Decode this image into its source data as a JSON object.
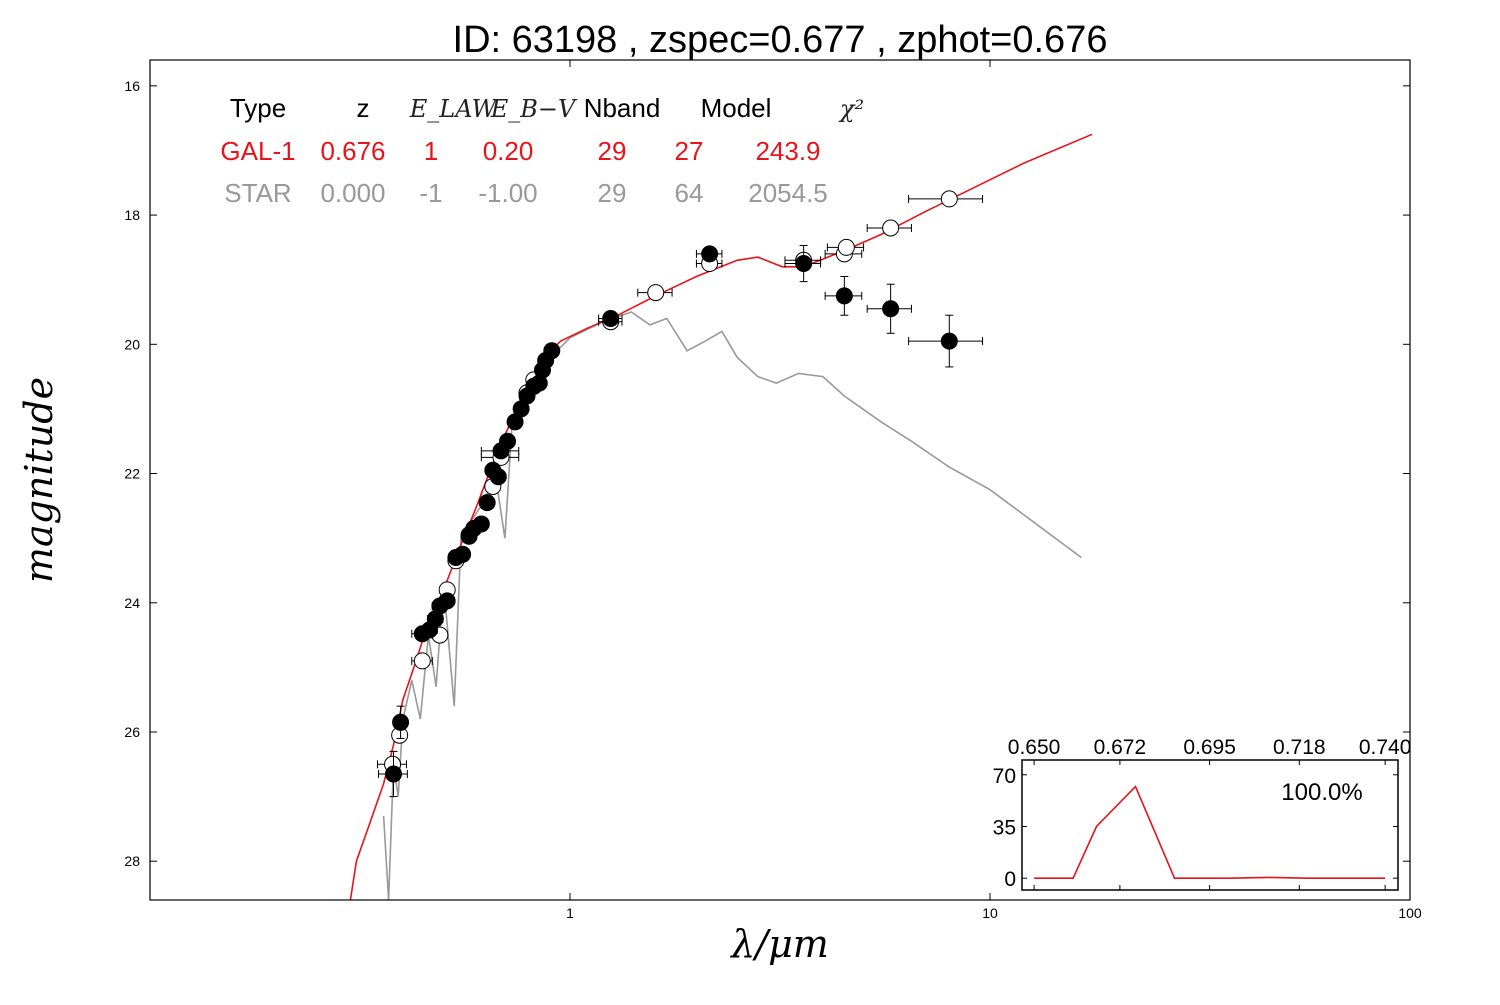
{
  "chart_data": {
    "type": "scatter",
    "title": "ID:  63198 , zspec=0.677 , zphot=0.676",
    "xlabel": "λ/μm",
    "ylabel": "magnitude",
    "xscale": "log",
    "xlim": [
      0.1,
      100
    ],
    "ylim": [
      28.6,
      15.6
    ],
    "x_ticks": [
      1,
      10,
      100
    ],
    "x_tick_labels": [
      "1",
      "10",
      "100"
    ],
    "y_ticks": [
      16,
      18,
      20,
      22,
      24,
      26,
      28
    ],
    "y_tick_labels": [
      "16",
      "18",
      "20",
      "22",
      "24",
      "26",
      "28"
    ],
    "colors": {
      "galaxy": "#e8141c",
      "star": "#999999",
      "markers": "#000000",
      "axes": "#000000"
    },
    "table": {
      "headers": [
        "Type",
        "z",
        "E_LAW",
        "E_B−V",
        "Nband",
        "Model",
        "χ²"
      ],
      "rows": [
        {
          "name": "GAL-1",
          "values": [
            "GAL-1",
            "0.676",
            "1",
            "0.20",
            "29",
            "27",
            "243.9"
          ],
          "color": "#e8141c"
        },
        {
          "name": "STAR",
          "values": [
            "STAR",
            "0.000",
            "-1",
            "-1.00",
            "29",
            "64",
            "2054.5"
          ],
          "color": "#999999"
        }
      ]
    },
    "series": [
      {
        "name": "GAL-1",
        "type": "line",
        "color": "#e8141c",
        "points": [
          [
            0.3,
            28.6
          ],
          [
            0.31,
            28.0
          ],
          [
            0.33,
            27.5
          ],
          [
            0.36,
            26.8
          ],
          [
            0.38,
            26.2
          ],
          [
            0.4,
            25.5
          ],
          [
            0.43,
            24.9
          ],
          [
            0.46,
            24.3
          ],
          [
            0.5,
            23.8
          ],
          [
            0.55,
            23.1
          ],
          [
            0.6,
            22.5
          ],
          [
            0.65,
            21.9
          ],
          [
            0.7,
            21.4
          ],
          [
            0.75,
            21.0
          ],
          [
            0.8,
            20.6
          ],
          [
            0.87,
            20.2
          ],
          [
            0.95,
            19.95
          ],
          [
            1.1,
            19.75
          ],
          [
            1.3,
            19.55
          ],
          [
            1.6,
            19.25
          ],
          [
            2.0,
            18.95
          ],
          [
            2.5,
            18.7
          ],
          [
            2.8,
            18.65
          ],
          [
            3.2,
            18.8
          ],
          [
            3.6,
            18.8
          ],
          [
            4.5,
            18.55
          ],
          [
            5.5,
            18.3
          ],
          [
            7,
            17.95
          ],
          [
            9,
            17.6
          ],
          [
            12,
            17.2
          ],
          [
            17.5,
            16.75
          ]
        ]
      },
      {
        "name": "STAR",
        "type": "line",
        "color": "#999999",
        "points": [
          [
            0.36,
            27.3
          ],
          [
            0.37,
            28.6
          ],
          [
            0.38,
            26.5
          ],
          [
            0.39,
            27.0
          ],
          [
            0.4,
            25.8
          ],
          [
            0.42,
            25.2
          ],
          [
            0.44,
            25.8
          ],
          [
            0.46,
            24.5
          ],
          [
            0.48,
            25.3
          ],
          [
            0.5,
            23.7
          ],
          [
            0.53,
            25.6
          ],
          [
            0.55,
            23.0
          ],
          [
            0.6,
            22.6
          ],
          [
            0.63,
            22.4
          ],
          [
            0.66,
            21.9
          ],
          [
            0.7,
            23.0
          ],
          [
            0.73,
            21.1
          ],
          [
            0.8,
            20.8
          ],
          [
            0.9,
            20.2
          ],
          [
            1.0,
            19.9
          ],
          [
            1.2,
            19.65
          ],
          [
            1.4,
            19.5
          ],
          [
            1.55,
            19.7
          ],
          [
            1.7,
            19.6
          ],
          [
            1.9,
            20.1
          ],
          [
            2.1,
            19.95
          ],
          [
            2.3,
            19.8
          ],
          [
            2.5,
            20.2
          ],
          [
            2.8,
            20.5
          ],
          [
            3.1,
            20.6
          ],
          [
            3.5,
            20.45
          ],
          [
            4.0,
            20.5
          ],
          [
            4.5,
            20.8
          ],
          [
            5.5,
            21.2
          ],
          [
            6.5,
            21.5
          ],
          [
            8,
            21.9
          ],
          [
            10,
            22.25
          ],
          [
            16.5,
            23.3
          ]
        ]
      }
    ],
    "photometry_observed": [
      {
        "x": 0.38,
        "y": 26.65,
        "xerr": 0.03,
        "yerr": 0.35
      },
      {
        "x": 0.395,
        "y": 25.85,
        "xerr": 0.01,
        "yerr": 0.25
      },
      {
        "x": 0.445,
        "y": 24.48,
        "xerr": 0.025,
        "yerr": 0.06
      },
      {
        "x": 0.463,
        "y": 24.42,
        "xerr": 0.02,
        "yerr": 0.06
      },
      {
        "x": 0.478,
        "y": 24.25,
        "xerr": 0.02,
        "yerr": 0.06
      },
      {
        "x": 0.49,
        "y": 24.05,
        "xerr": 0.02,
        "yerr": 0.06
      },
      {
        "x": 0.51,
        "y": 23.97,
        "xerr": 0.02,
        "yerr": 0.06
      },
      {
        "x": 0.535,
        "y": 23.3,
        "xerr": 0.02,
        "yerr": 0.05
      },
      {
        "x": 0.555,
        "y": 23.25,
        "xerr": 0.02,
        "yerr": 0.05
      },
      {
        "x": 0.575,
        "y": 22.97,
        "xerr": 0.02,
        "yerr": 0.05
      },
      {
        "x": 0.59,
        "y": 22.85,
        "xerr": 0.02,
        "yerr": 0.05
      },
      {
        "x": 0.615,
        "y": 22.78,
        "xerr": 0.02,
        "yerr": 0.05
      },
      {
        "x": 0.635,
        "y": 22.45,
        "xerr": 0.02,
        "yerr": 0.05
      },
      {
        "x": 0.655,
        "y": 21.95,
        "xerr": 0.02,
        "yerr": 0.05
      },
      {
        "x": 0.675,
        "y": 22.05,
        "xerr": 0.02,
        "yerr": 0.05
      },
      {
        "x": 0.685,
        "y": 21.65,
        "xerr": 0.07,
        "yerr": 0.05
      },
      {
        "x": 0.71,
        "y": 21.5,
        "xerr": 0.02,
        "yerr": 0.05
      },
      {
        "x": 0.74,
        "y": 21.2,
        "xerr": 0.02,
        "yerr": 0.05
      },
      {
        "x": 0.765,
        "y": 21.0,
        "xerr": 0.02,
        "yerr": 0.05
      },
      {
        "x": 0.79,
        "y": 20.8,
        "xerr": 0.02,
        "yerr": 0.05
      },
      {
        "x": 0.82,
        "y": 20.65,
        "xerr": 0.02,
        "yerr": 0.05
      },
      {
        "x": 0.845,
        "y": 20.6,
        "xerr": 0.02,
        "yerr": 0.05
      },
      {
        "x": 0.86,
        "y": 20.4,
        "xerr": 0.02,
        "yerr": 0.05
      },
      {
        "x": 0.875,
        "y": 20.25,
        "xerr": 0.02,
        "yerr": 0.05
      },
      {
        "x": 0.905,
        "y": 20.1,
        "xerr": 0.02,
        "yerr": 0.05
      },
      {
        "x": 1.25,
        "y": 19.6,
        "xerr": 0.08,
        "yerr": 0.05
      },
      {
        "x": 2.15,
        "y": 18.6,
        "xerr": 0.15,
        "yerr": 0.05
      },
      {
        "x": 3.6,
        "y": 18.75,
        "xerr": 0.35,
        "yerr": 0.28
      },
      {
        "x": 4.5,
        "y": 19.25,
        "xerr": 0.45,
        "yerr": 0.3
      },
      {
        "x": 5.8,
        "y": 19.45,
        "xerr": 0.7,
        "yerr": 0.38
      },
      {
        "x": 8.0,
        "y": 19.95,
        "xerr": 1.6,
        "yerr": 0.4
      }
    ],
    "photometry_model": [
      {
        "x": 0.378,
        "y": 26.5,
        "xerr": 0.03,
        "yerr": 0.0
      },
      {
        "x": 0.393,
        "y": 26.05,
        "xerr": 0.01,
        "yerr": 0.0
      },
      {
        "x": 0.445,
        "y": 24.9,
        "xerr": 0.025,
        "yerr": 0.0
      },
      {
        "x": 0.49,
        "y": 24.5,
        "xerr": 0.02,
        "yerr": 0.0
      },
      {
        "x": 0.51,
        "y": 23.8,
        "xerr": 0.02,
        "yerr": 0.0
      },
      {
        "x": 0.535,
        "y": 23.35,
        "xerr": 0.02,
        "yerr": 0.0
      },
      {
        "x": 0.575,
        "y": 22.95,
        "xerr": 0.02,
        "yerr": 0.0
      },
      {
        "x": 0.655,
        "y": 22.2,
        "xerr": 0.02,
        "yerr": 0.0
      },
      {
        "x": 0.685,
        "y": 21.75,
        "xerr": 0.07,
        "yerr": 0.0
      },
      {
        "x": 0.79,
        "y": 20.75,
        "xerr": 0.02,
        "yerr": 0.0
      },
      {
        "x": 0.82,
        "y": 20.55,
        "xerr": 0.02,
        "yerr": 0.0
      },
      {
        "x": 1.25,
        "y": 19.65,
        "xerr": 0.08,
        "yerr": 0.0
      },
      {
        "x": 1.6,
        "y": 19.2,
        "xerr": 0.15,
        "yerr": 0.0
      },
      {
        "x": 2.15,
        "y": 18.75,
        "xerr": 0.15,
        "yerr": 0.0
      },
      {
        "x": 3.6,
        "y": 18.7,
        "xerr": 0.35,
        "yerr": 0.0
      },
      {
        "x": 4.5,
        "y": 18.6,
        "xerr": 0.45,
        "yerr": 0.0
      },
      {
        "x": 4.55,
        "y": 18.5,
        "xerr": 0.45,
        "yerr": 0.0
      },
      {
        "x": 5.8,
        "y": 18.2,
        "xerr": 0.7,
        "yerr": 0.0
      },
      {
        "x": 8.0,
        "y": 17.75,
        "xerr": 1.6,
        "yerr": 0.0
      }
    ],
    "inset": {
      "type": "line",
      "xlim": [
        0.6469,
        0.7433
      ],
      "ylim": [
        -8,
        80
      ],
      "x_ticks": [
        0.65,
        0.672,
        0.695,
        0.718,
        0.74
      ],
      "x_tick_labels": [
        "0.650",
        "0.672",
        "0.695",
        "0.718",
        "0.740"
      ],
      "y_ticks": [
        0,
        35,
        70
      ],
      "y_tick_labels": [
        "0",
        "35",
        "70"
      ],
      "percentage": "100.0%",
      "color": "#e8141c",
      "points": [
        [
          0.65,
          0
        ],
        [
          0.66,
          0
        ],
        [
          0.666,
          35
        ],
        [
          0.676,
          62
        ],
        [
          0.686,
          0
        ],
        [
          0.7,
          0
        ],
        [
          0.71,
          0.5
        ],
        [
          0.72,
          0
        ],
        [
          0.74,
          0
        ]
      ]
    }
  }
}
